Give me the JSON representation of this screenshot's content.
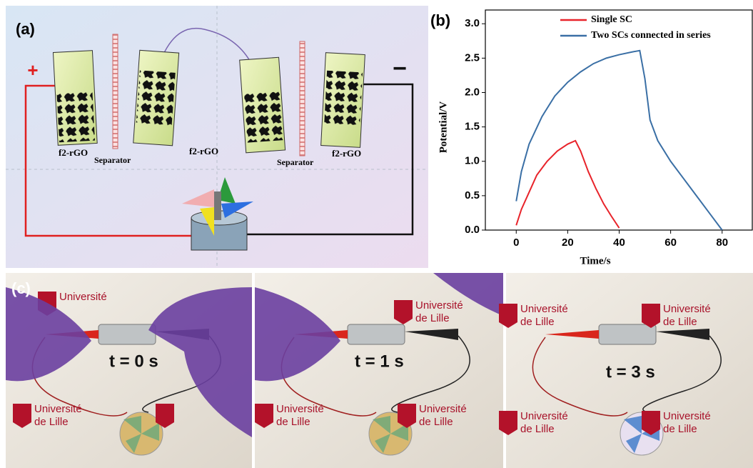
{
  "panel_a": {
    "label": "(a)",
    "plus": "+",
    "minus": "−",
    "electrodes": [
      "f2-rGO",
      "f2-rGO",
      "f2-rGO"
    ],
    "separators": [
      "Separator",
      "Separator"
    ]
  },
  "chart_data": {
    "type": "line",
    "label": "(b)",
    "x_label": "Time/s",
    "y_label": "Potential/V",
    "xlim": [
      -12,
      92
    ],
    "ylim": [
      0,
      3.2
    ],
    "xticks": [
      0,
      20,
      40,
      60,
      80
    ],
    "yticks": [
      {
        "value": 0,
        "label": "0.0"
      },
      0.5,
      {
        "value": 1,
        "label": "1.0"
      },
      1.5,
      {
        "value": 2,
        "label": "2.0"
      },
      2.5,
      {
        "value": 3,
        "label": "3.0"
      }
    ],
    "legend": "top-right",
    "series": [
      {
        "name": "Single SC",
        "color": "#e8232a",
        "x": [
          0,
          2,
          5,
          8,
          12,
          16,
          20,
          23,
          25,
          28,
          31,
          34,
          37,
          40
        ],
        "values": [
          0.07,
          0.3,
          0.55,
          0.8,
          1.0,
          1.15,
          1.25,
          1.3,
          1.15,
          0.85,
          0.6,
          0.38,
          0.2,
          0.03
        ]
      },
      {
        "name": "Two SCs connected in series",
        "color": "#3a6fa5",
        "x": [
          0,
          2,
          5,
          10,
          15,
          20,
          25,
          30,
          35,
          40,
          45,
          48,
          50,
          52,
          55,
          60,
          65,
          70,
          75,
          80
        ],
        "values": [
          0.42,
          0.85,
          1.25,
          1.65,
          1.95,
          2.15,
          2.3,
          2.42,
          2.5,
          2.55,
          2.59,
          2.61,
          2.2,
          1.6,
          1.3,
          1.0,
          0.75,
          0.5,
          0.25,
          0.0
        ]
      }
    ]
  },
  "panel_c": {
    "label": "(c)",
    "photos": [
      {
        "time": "t = 0 s",
        "logos": [
          "Université",
          "Université",
          "de Lille"
        ]
      },
      {
        "time": "t = 1 s",
        "logos": [
          "Université",
          "de Lille",
          "Université",
          "de Lille",
          "Université",
          "de Lille"
        ]
      },
      {
        "time": "t = 3 s",
        "logos": [
          "Université",
          "de Lille",
          "Université",
          "de Lille",
          "Université",
          "de Lille",
          "Université",
          "de Lille"
        ]
      }
    ]
  }
}
